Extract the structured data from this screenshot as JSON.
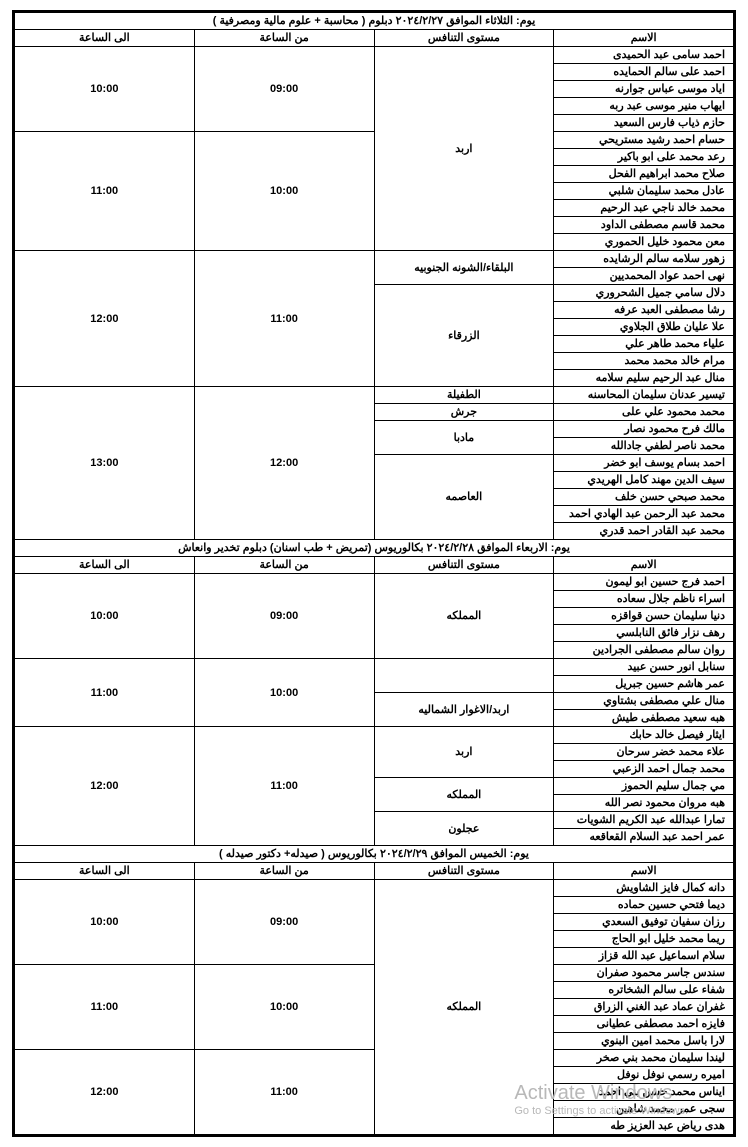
{
  "col_widths": {
    "name_pct": 30,
    "level_pct": 25,
    "from_pct": 23,
    "to_pct": 22
  },
  "day_headers": {
    "name": "الاسم",
    "level": "مستوى التنافس",
    "from": "من الساعة",
    "to": "الى الساعة"
  },
  "watermark": {
    "line1": "Activate Windows",
    "line2": "Go to Settings to activate Windows."
  },
  "days": [
    {
      "title": "يوم: الثلاثاء  الموافق ٢٠٢٤/٢/٢٧  دبلوم ( محاسبة + علوم مالية ومصرفية )",
      "slots": [
        {
          "from": "09:00",
          "to": "10:00",
          "groups": [
            {
              "level": "اربد",
              "level_span_into_next_slot": true,
              "names": [
                "احمد سامى عبد الحميدى",
                "احمد على سالم الحمايده",
                "اياد موسى عباس جوارنه",
                "ايهاب منير موسى عبد ربه",
                "حازم ذياب فارس السعيد"
              ]
            }
          ]
        },
        {
          "from": "10:00",
          "to": "11:00",
          "groups": [
            {
              "level": "__continued__",
              "names": [
                "حسام احمد رشيد مستريحي",
                "رعد محمد على ابو  باكير",
                "صلاح محمد ابراهيم الفحل",
                "عادل محمد سليمان شلبي",
                "محمد خالد ناجي عبد الرحيم",
                "محمد قاسم مصطفى الداود",
                "معن محمود خليل الحموري"
              ]
            }
          ]
        },
        {
          "from": "11:00",
          "to": "12:00",
          "groups": [
            {
              "level": "البلقاء/الشونه الجنوبيه",
              "names": [
                "زهور سلامه سالم الرشايده",
                "نهى احمد عواد المحمديين"
              ]
            },
            {
              "level": "الزرقاء",
              "names": [
                "دلال سامي جميل الشحروري",
                "رشا مصطفى العبد عرفه",
                "علا عليان طلاق الجلاوي",
                "علياء محمد طاهر علي",
                "مرام خالد محمد محمد",
                "منال عبد الرحيم سليم سلامه"
              ]
            }
          ]
        },
        {
          "from": "12:00",
          "to": "13:00",
          "groups": [
            {
              "level": "الطفيلة",
              "names": [
                "تيسير  عدنان  سليمان  المحاسنه"
              ]
            },
            {
              "level": "جرش",
              "names": [
                "محمد محمود علي على"
              ]
            },
            {
              "level": "مادبا",
              "names": [
                "مالك فرح محمود نصار",
                "محمد ناصر لطفي جادالله"
              ]
            },
            {
              "level": "العاصمه",
              "names": [
                "احمد بسام يوسف ابو خضر",
                "سيف الدين مهند كامل الهريدي",
                "محمد صبحي حسن خلف",
                "محمد عبد الرحمن عبد الهادي احمد",
                "محمد عبد القادر احمد قدري"
              ]
            }
          ]
        }
      ]
    },
    {
      "title": "يوم:  الاربعاء    الموافق  ٢٠٢٤/٢/٢٨  بكالوريوس  (تمريض  + طب اسنان) دبلوم تخدير وانعاش",
      "slots": [
        {
          "from": "09:00",
          "to": "10:00",
          "groups": [
            {
              "level": "المملكه",
              "names": [
                "احمد فرج حسين ابو ليمون",
                "اسراء ناظم جلال سعاده",
                "دنيا سليمان حسن قواقزه",
                "رهف نزار فائق النابلسي",
                "روان سالم مصطفى الجرادين"
              ]
            }
          ]
        },
        {
          "from": "10:00",
          "to": "11:00",
          "groups": [
            {
              "level": "",
              "names": [
                "سنابل انور حسن عبيد",
                "عمر هاشم حسين جبريل"
              ]
            },
            {
              "level": "اربد/الاغوار الشماليه",
              "names": [
                "منال علي مصطفى بشتاوي",
                "هبه سعيد مصطفى طيش"
              ]
            }
          ]
        },
        {
          "from": "11:00",
          "to": "12:00",
          "groups": [
            {
              "level": "اربد",
              "names": [
                "ايثار فيصل خالد حابك",
                "علاء محمد خضر سرحان",
                "محمد جمال احمد الزعبي"
              ]
            },
            {
              "level": "المملكه",
              "names": [
                "مي جمال سليم الحموز",
                "هبه مروان محمود نصر الله"
              ]
            },
            {
              "level": "عجلون",
              "names": [
                "تمارا عبدالله عبد الكريم الشويات",
                "عمر احمد عبد السلام القعاقعه"
              ]
            }
          ]
        }
      ]
    },
    {
      "title": "يوم:  الخميس    الموافق  ٢٠٢٤/٢/٢٩  بكالوريوس ( صيدله+ دكتور صيدله )",
      "slots": [
        {
          "from": "09:00",
          "to": "10:00",
          "groups": [
            {
              "level": "المملكه",
              "level_span_into_next_slot": 2,
              "names": [
                "دانه كمال فايز الشاويش",
                "ديما فتحي حسين حماده",
                "رزان سفيان توفيق السعدي",
                "ريما محمد خليل ابو الحاج",
                "سلام اسماعيل عبد الله قزاز"
              ]
            }
          ]
        },
        {
          "from": "10:00",
          "to": "11:00",
          "groups": [
            {
              "level": "__continued__",
              "names": [
                "سندس جاسر محمود صفران",
                "شفاء على سالم الشخاتره",
                "غفران عماد عبد الغني الزراق",
                "فايزه احمد مصطفى عطيانى",
                "لارا باسل محمد امين البنوي"
              ]
            }
          ]
        },
        {
          "from": "11:00",
          "to": "12:00",
          "groups": [
            {
              "level": "__continued__",
              "names": [
                "ليندا سليمان محمد بني صخر",
                "اميره رسمي نوفل نوفل",
                "ايناس محمد حسن بني احمد",
                "سجى عمر محمد شاهين",
                "هدى رياض عبد العزيز طه"
              ]
            }
          ]
        }
      ]
    }
  ]
}
